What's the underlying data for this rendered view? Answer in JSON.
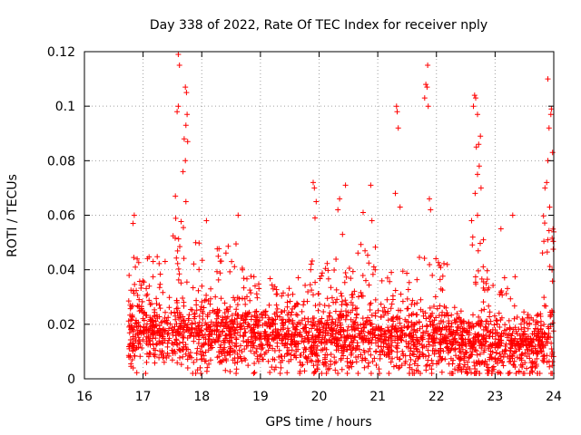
{
  "chart_data": {
    "type": "scatter",
    "title": "Day 338 of 2022, Rate Of TEC Index for receiver nply",
    "xlabel": "GPS time / hours",
    "ylabel": "ROTI / TECUs",
    "xlim": [
      16,
      24
    ],
    "ylim": [
      0,
      0.12
    ],
    "x_ticks": [
      16,
      17,
      18,
      19,
      20,
      21,
      22,
      23,
      24
    ],
    "x_tick_labels": [
      "16",
      "17",
      "18",
      "19",
      "20",
      "21",
      "22",
      "23",
      "24"
    ],
    "y_ticks": [
      0,
      0.02,
      0.04,
      0.06,
      0.08,
      0.1,
      0.12
    ],
    "y_tick_labels": [
      "0",
      "0.02",
      "0.04",
      "0.06",
      "0.08",
      "0.1",
      "0.12"
    ],
    "grid": true,
    "marker": "+",
    "color": "#ff0000",
    "data_range_x": [
      16.75,
      24.0
    ],
    "baseline": [
      [
        16.75,
        0.016
      ],
      [
        17.0,
        0.017
      ],
      [
        17.5,
        0.016
      ],
      [
        18.0,
        0.015
      ],
      [
        18.5,
        0.016
      ],
      [
        19.0,
        0.015
      ],
      [
        19.5,
        0.014
      ],
      [
        20.0,
        0.013
      ],
      [
        20.5,
        0.014
      ],
      [
        21.0,
        0.015
      ],
      [
        21.5,
        0.014
      ],
      [
        22.0,
        0.013
      ],
      [
        22.5,
        0.012
      ],
      [
        23.0,
        0.012
      ],
      [
        23.5,
        0.012
      ],
      [
        24.0,
        0.012
      ]
    ],
    "activity_bands": [
      {
        "x": [
          16.75,
          17.4
        ],
        "top": 0.045
      },
      {
        "x": [
          17.5,
          17.9
        ],
        "top": 0.06
      },
      {
        "x": [
          17.9,
          18.7
        ],
        "top": 0.05
      },
      {
        "x": [
          18.7,
          19.8
        ],
        "top": 0.038
      },
      {
        "x": [
          19.8,
          20.6
        ],
        "top": 0.045
      },
      {
        "x": [
          20.6,
          21.0
        ],
        "top": 0.05
      },
      {
        "x": [
          21.0,
          21.7
        ],
        "top": 0.04
      },
      {
        "x": [
          21.7,
          22.2
        ],
        "top": 0.045
      },
      {
        "x": [
          22.2,
          22.6
        ],
        "top": 0.025
      },
      {
        "x": [
          22.6,
          22.9
        ],
        "top": 0.05
      },
      {
        "x": [
          22.9,
          23.4
        ],
        "top": 0.038
      },
      {
        "x": [
          23.4,
          23.8
        ],
        "top": 0.025
      },
      {
        "x": [
          23.8,
          24.0
        ],
        "top": 0.06
      }
    ],
    "spikes": [
      {
        "x": 17.6,
        "y": 0.119
      },
      {
        "x": 17.62,
        "y": 0.115
      },
      {
        "x": 17.6,
        "y": 0.1
      },
      {
        "x": 17.58,
        "y": 0.098
      },
      {
        "x": 17.72,
        "y": 0.107
      },
      {
        "x": 17.74,
        "y": 0.105
      },
      {
        "x": 17.75,
        "y": 0.097
      },
      {
        "x": 17.73,
        "y": 0.093
      },
      {
        "x": 17.7,
        "y": 0.088
      },
      {
        "x": 17.76,
        "y": 0.087
      },
      {
        "x": 17.72,
        "y": 0.08
      },
      {
        "x": 17.68,
        "y": 0.076
      },
      {
        "x": 17.55,
        "y": 0.067
      },
      {
        "x": 17.73,
        "y": 0.065
      },
      {
        "x": 16.85,
        "y": 0.06
      },
      {
        "x": 16.83,
        "y": 0.057
      },
      {
        "x": 18.08,
        "y": 0.058
      },
      {
        "x": 18.62,
        "y": 0.06
      },
      {
        "x": 19.9,
        "y": 0.072
      },
      {
        "x": 19.92,
        "y": 0.07
      },
      {
        "x": 19.95,
        "y": 0.065
      },
      {
        "x": 19.93,
        "y": 0.059
      },
      {
        "x": 20.35,
        "y": 0.066
      },
      {
        "x": 20.32,
        "y": 0.062
      },
      {
        "x": 20.45,
        "y": 0.071
      },
      {
        "x": 20.4,
        "y": 0.053
      },
      {
        "x": 20.88,
        "y": 0.071
      },
      {
        "x": 20.75,
        "y": 0.061
      },
      {
        "x": 20.9,
        "y": 0.058
      },
      {
        "x": 21.32,
        "y": 0.1
      },
      {
        "x": 21.33,
        "y": 0.098
      },
      {
        "x": 21.35,
        "y": 0.092
      },
      {
        "x": 21.3,
        "y": 0.068
      },
      {
        "x": 21.38,
        "y": 0.063
      },
      {
        "x": 21.85,
        "y": 0.115
      },
      {
        "x": 21.82,
        "y": 0.108
      },
      {
        "x": 21.84,
        "y": 0.107
      },
      {
        "x": 21.8,
        "y": 0.103
      },
      {
        "x": 21.86,
        "y": 0.1
      },
      {
        "x": 21.88,
        "y": 0.066
      },
      {
        "x": 21.9,
        "y": 0.062
      },
      {
        "x": 22.65,
        "y": 0.104
      },
      {
        "x": 22.67,
        "y": 0.103
      },
      {
        "x": 22.63,
        "y": 0.1
      },
      {
        "x": 22.7,
        "y": 0.097
      },
      {
        "x": 22.75,
        "y": 0.089
      },
      {
        "x": 22.72,
        "y": 0.086
      },
      {
        "x": 22.68,
        "y": 0.085
      },
      {
        "x": 22.73,
        "y": 0.078
      },
      {
        "x": 22.7,
        "y": 0.075
      },
      {
        "x": 22.76,
        "y": 0.07
      },
      {
        "x": 22.66,
        "y": 0.068
      },
      {
        "x": 22.7,
        "y": 0.06
      },
      {
        "x": 22.6,
        "y": 0.058
      },
      {
        "x": 22.62,
        "y": 0.052
      },
      {
        "x": 22.8,
        "y": 0.051
      },
      {
        "x": 23.1,
        "y": 0.055
      },
      {
        "x": 23.3,
        "y": 0.06
      },
      {
        "x": 23.9,
        "y": 0.11
      },
      {
        "x": 23.96,
        "y": 0.099
      },
      {
        "x": 23.95,
        "y": 0.097
      },
      {
        "x": 23.92,
        "y": 0.092
      },
      {
        "x": 23.98,
        "y": 0.083
      },
      {
        "x": 23.9,
        "y": 0.08
      },
      {
        "x": 23.88,
        "y": 0.072
      },
      {
        "x": 23.85,
        "y": 0.07
      },
      {
        "x": 23.93,
        "y": 0.063
      },
      {
        "x": 23.9,
        "y": 0.051
      },
      {
        "x": 23.97,
        "y": 0.04
      }
    ],
    "point_count": 2600
  }
}
